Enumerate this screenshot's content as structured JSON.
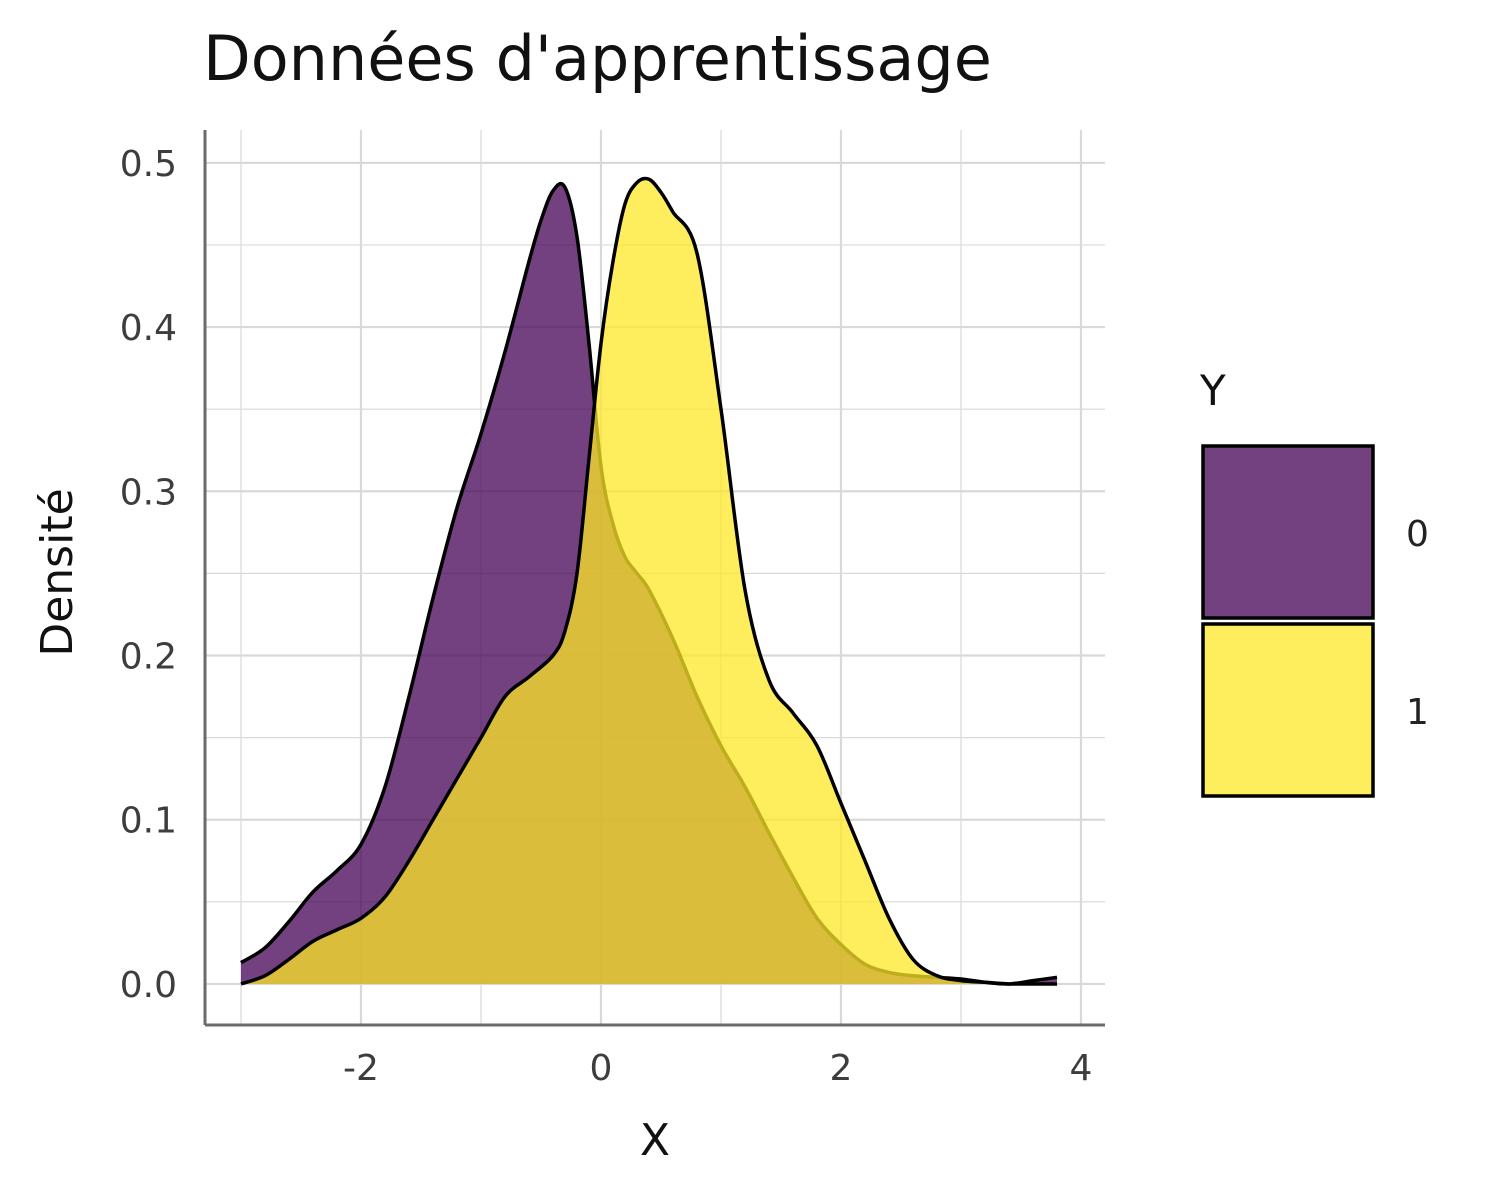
{
  "chart_data": {
    "type": "area",
    "title": "Données d'apprentissage",
    "xlabel": "X",
    "ylabel": "Densité",
    "xlim": [
      -3.3,
      4.2
    ],
    "ylim": [
      -0.025,
      0.52
    ],
    "x_ticks": [
      -2,
      0,
      2,
      4
    ],
    "x_tick_labels": [
      "-2",
      "0",
      "2",
      "4"
    ],
    "y_ticks": [
      0.0,
      0.1,
      0.2,
      0.3,
      0.4,
      0.5
    ],
    "y_tick_labels": [
      "0.0",
      "0.1",
      "0.2",
      "0.3",
      "0.4",
      "0.5"
    ],
    "grid": true,
    "legend": {
      "title": "Y",
      "position": "right"
    },
    "series": [
      {
        "name": "0",
        "color": "#440154",
        "opacity": 0.75,
        "x": [
          -3.0,
          -2.8,
          -2.6,
          -2.4,
          -2.2,
          -2.0,
          -1.8,
          -1.6,
          -1.4,
          -1.2,
          -1.0,
          -0.8,
          -0.6,
          -0.5,
          -0.4,
          -0.3,
          -0.2,
          -0.1,
          0.0,
          0.1,
          0.2,
          0.3,
          0.4,
          0.6,
          0.8,
          1.0,
          1.2,
          1.4,
          1.6,
          1.8,
          2.0,
          2.2,
          2.4,
          2.6,
          2.8,
          3.0,
          3.2,
          3.4,
          3.6,
          3.8
        ],
        "y": [
          0.013,
          0.022,
          0.038,
          0.056,
          0.069,
          0.085,
          0.12,
          0.175,
          0.235,
          0.29,
          0.335,
          0.385,
          0.44,
          0.465,
          0.483,
          0.485,
          0.455,
          0.39,
          0.315,
          0.28,
          0.26,
          0.25,
          0.24,
          0.21,
          0.175,
          0.145,
          0.12,
          0.092,
          0.065,
          0.04,
          0.024,
          0.012,
          0.007,
          0.005,
          0.004,
          0.003,
          0.001,
          0.0,
          0.002,
          0.004
        ]
      },
      {
        "name": "1",
        "color": "#FDE725",
        "opacity": 0.75,
        "x": [
          -3.0,
          -2.8,
          -2.6,
          -2.4,
          -2.2,
          -2.0,
          -1.8,
          -1.6,
          -1.4,
          -1.2,
          -1.0,
          -0.8,
          -0.6,
          -0.4,
          -0.3,
          -0.2,
          -0.1,
          0.0,
          0.1,
          0.2,
          0.3,
          0.4,
          0.5,
          0.6,
          0.8,
          1.0,
          1.2,
          1.4,
          1.6,
          1.8,
          2.0,
          2.2,
          2.4,
          2.6,
          2.8,
          3.0,
          3.2,
          3.4,
          3.6,
          3.8
        ],
        "y": [
          0.0,
          0.005,
          0.015,
          0.026,
          0.033,
          0.04,
          0.053,
          0.075,
          0.1,
          0.125,
          0.15,
          0.175,
          0.187,
          0.2,
          0.215,
          0.25,
          0.32,
          0.39,
          0.44,
          0.475,
          0.488,
          0.49,
          0.482,
          0.47,
          0.445,
          0.35,
          0.24,
          0.185,
          0.165,
          0.145,
          0.11,
          0.075,
          0.04,
          0.015,
          0.005,
          0.002,
          0.001,
          0.0,
          0.0,
          0.0
        ]
      }
    ]
  },
  "colors": {
    "grid": "#d9d9d9",
    "axis": "#6b6b6b",
    "outline": "#000000"
  }
}
